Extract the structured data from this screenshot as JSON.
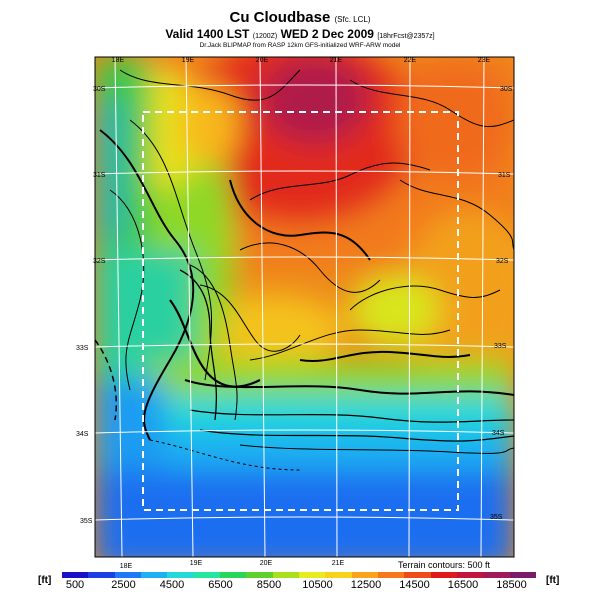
{
  "header": {
    "title": "Cu Cloudbase",
    "title_note": "(Sfc. LCL)",
    "valid": "Valid 1400 LST",
    "valid_code": "(1200Z)",
    "date": "WED 2 Dec 2009",
    "forecast": "[18hrFcst@2357z]",
    "credit": "Dr.Jack BLIPMAP from RASP 12km GFS-initialized WRF-ARW model"
  },
  "map": {
    "lon_labels": [
      "18E",
      "19E",
      "20E",
      "21E",
      "22E",
      "23E"
    ],
    "lon_labels_bottom": [
      "18E",
      "19E",
      "20E",
      "21E"
    ],
    "lat_labels_left": [
      "30S",
      "31S",
      "32S",
      "33S",
      "34S",
      "35S"
    ],
    "lat_labels_right": [
      "30S",
      "31S",
      "32S",
      "33S",
      "34S",
      "35S"
    ],
    "terrain_note": "Terrain contours: 500 ft"
  },
  "colorbar": {
    "unit": "[ft]",
    "tick_labels": [
      "500",
      "2500",
      "4500",
      "6500",
      "8500",
      "10500",
      "12500",
      "14500",
      "16500",
      "18500"
    ],
    "colors": [
      "#1a10c8",
      "#1e3ee6",
      "#1f78f5",
      "#1fb0f2",
      "#22d8d8",
      "#25e6a0",
      "#2ad65a",
      "#5ed22a",
      "#a8e01e",
      "#e8ec1e",
      "#f8d21a",
      "#f9a41a",
      "#f5781a",
      "#ee4a1a",
      "#e01a1a",
      "#c2143c",
      "#a01a5a",
      "#7a1a6a"
    ]
  }
}
